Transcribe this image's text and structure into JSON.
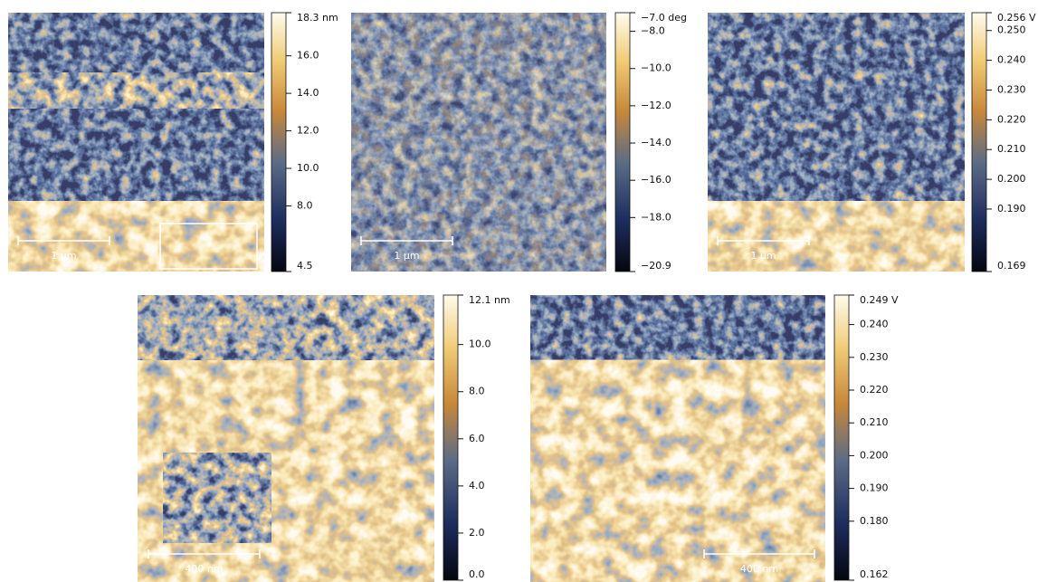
{
  "panels": [
    {
      "scale_bar": "1 µm",
      "colorbar": {
        "ticks": [
          {
            "value": 18.3,
            "label": "18.3 nm"
          },
          {
            "value": 16.0,
            "label": "16.0"
          },
          {
            "value": 14.0,
            "label": "14.0"
          },
          {
            "value": 12.0,
            "label": "12.0"
          },
          {
            "value": 10.0,
            "label": "10.0"
          },
          {
            "value": 8.0,
            "label": "8.0"
          },
          {
            "value": 4.5,
            "label": "4.5"
          }
        ]
      }
    },
    {
      "scale_bar": "1 µm",
      "colorbar": {
        "ticks": [
          {
            "value": -7.0,
            "label": "−7.0 deg"
          },
          {
            "value": -8.0,
            "label": "−8.0"
          },
          {
            "value": -10.0,
            "label": "−10.0"
          },
          {
            "value": -12.0,
            "label": "−12.0"
          },
          {
            "value": -14.0,
            "label": "−14.0"
          },
          {
            "value": -16.0,
            "label": "−16.0"
          },
          {
            "value": -18.0,
            "label": "−18.0"
          },
          {
            "value": -20.9,
            "label": "−20.9"
          }
        ]
      }
    },
    {
      "scale_bar": "1 µm",
      "colorbar": {
        "ticks": [
          {
            "value": 0.256,
            "label": "0.256 V"
          },
          {
            "value": 0.25,
            "label": "0.250"
          },
          {
            "value": 0.24,
            "label": "0.240"
          },
          {
            "value": 0.23,
            "label": "0.230"
          },
          {
            "value": 0.22,
            "label": "0.220"
          },
          {
            "value": 0.21,
            "label": "0.210"
          },
          {
            "value": 0.2,
            "label": "0.200"
          },
          {
            "value": 0.19,
            "label": "0.190"
          },
          {
            "value": 0.169,
            "label": "0.169"
          }
        ]
      }
    },
    {
      "scale_bar": "400 nm",
      "colorbar": {
        "ticks": [
          {
            "value": 12.1,
            "label": "12.1 nm"
          },
          {
            "value": 10.0,
            "label": "10.0"
          },
          {
            "value": 8.0,
            "label": "8.0"
          },
          {
            "value": 6.0,
            "label": "6.0"
          },
          {
            "value": 4.0,
            "label": "4.0"
          },
          {
            "value": 2.0,
            "label": "2.0"
          },
          {
            "value": 0.0,
            "label": "0.0"
          }
        ]
      }
    },
    {
      "scale_bar": "400 nm",
      "colorbar": {
        "ticks": [
          {
            "value": 0.249,
            "label": "0.249 V"
          },
          {
            "value": 0.24,
            "label": "0.240"
          },
          {
            "value": 0.23,
            "label": "0.230"
          },
          {
            "value": 0.22,
            "label": "0.220"
          },
          {
            "value": 0.21,
            "label": "0.210"
          },
          {
            "value": 0.2,
            "label": "0.200"
          },
          {
            "value": 0.19,
            "label": "0.190"
          },
          {
            "value": 0.18,
            "label": "0.180"
          },
          {
            "value": 0.162,
            "label": "0.162"
          }
        ]
      }
    }
  ]
}
